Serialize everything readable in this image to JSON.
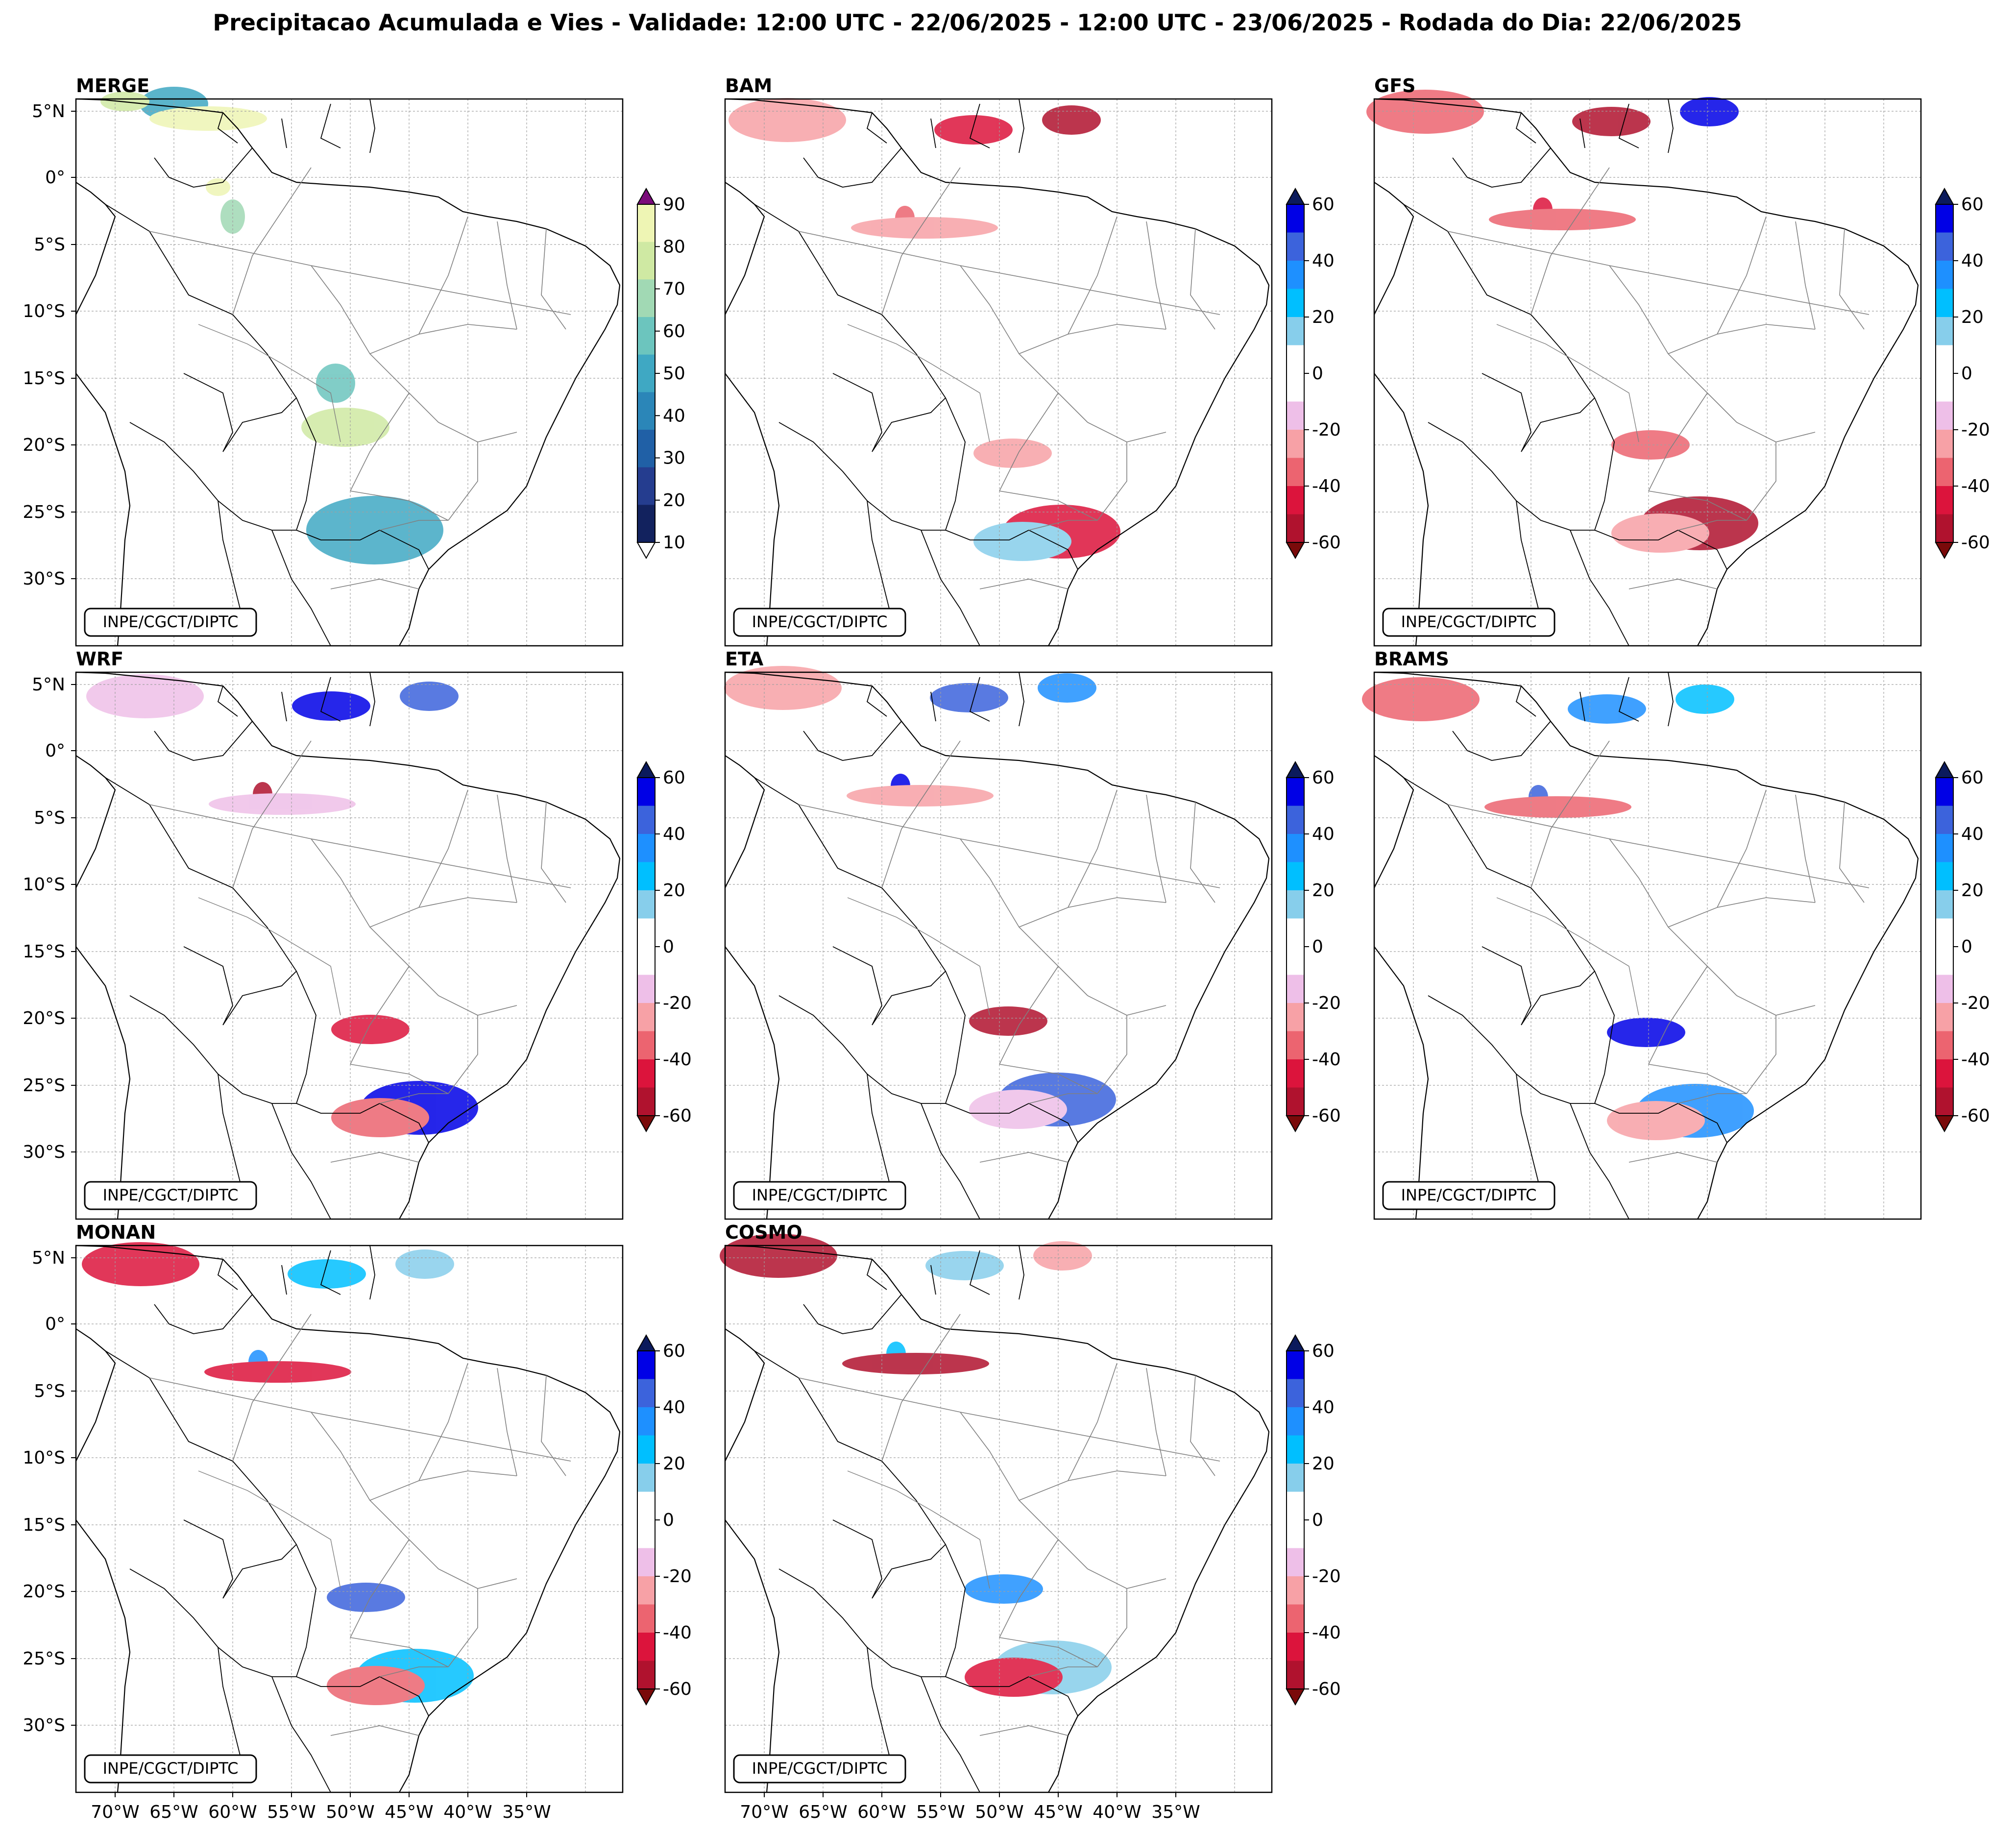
{
  "figure_title": "Precipitacao Acumulada e Vies - Validade: 12:00 UTC - 22/06/2025 - 12:00 UTC - 23/06/2025 - Rodada do Dia: 22/06/2025",
  "watermark": "INPE/CGCT/DIPTC",
  "lat_labels": [
    "5°N",
    "0°",
    "5°S",
    "10°S",
    "15°S",
    "20°S",
    "25°S",
    "30°S"
  ],
  "lon_labels": [
    "70°W",
    "65°W",
    "60°W",
    "55°W",
    "50°W",
    "45°W",
    "40°W",
    "35°W"
  ],
  "panels": [
    {
      "name": "MERGE",
      "kind": "precip"
    },
    {
      "name": "BAM",
      "kind": "bias"
    },
    {
      "name": "GFS",
      "kind": "bias"
    },
    {
      "name": "WRF",
      "kind": "bias"
    },
    {
      "name": "ETA",
      "kind": "bias"
    },
    {
      "name": "BRAMS",
      "kind": "bias"
    },
    {
      "name": "MONAN",
      "kind": "bias"
    },
    {
      "name": "COSMO",
      "kind": "bias"
    }
  ],
  "colorbars": {
    "precip": {
      "ticks": [
        "10",
        "20",
        "30",
        "40",
        "50",
        "60",
        "70",
        "80",
        "90"
      ],
      "colors": [
        "#eef5b4",
        "#cfe9a3",
        "#a1d9b4",
        "#6cc5be",
        "#3fa8c3",
        "#2b86b8",
        "#2060a6",
        "#253d8f",
        "#12225e"
      ],
      "under": "#ffffff",
      "over": "#7a0a7a"
    },
    "bias": {
      "ticks": [
        "60",
        "40",
        "20",
        "0",
        "-20",
        "-40",
        "-60"
      ],
      "colors": [
        "#0000e6",
        "#3c63dc",
        "#1e90ff",
        "#00bfff",
        "#87ceeb",
        "#ffffff",
        "#ffffff",
        "#eebfe8",
        "#f7a1a6",
        "#ec6470",
        "#dc143c",
        "#b0122e"
      ],
      "over": "#0b1a5c",
      "under": "#7a0a0a"
    }
  }
}
